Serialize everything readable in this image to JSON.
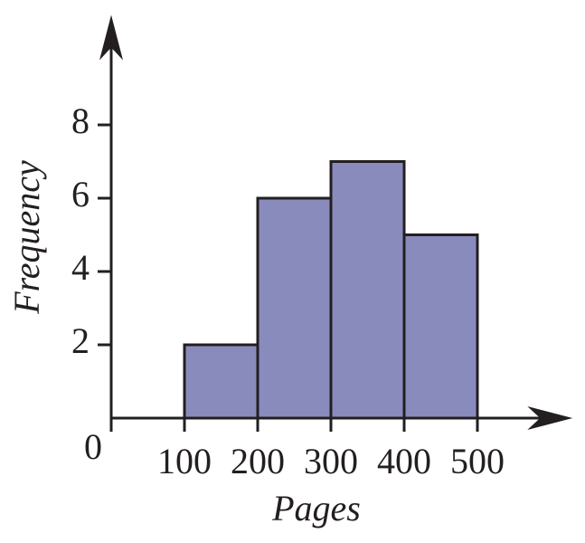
{
  "chart_data": {
    "type": "histogram",
    "x_label": "Pages",
    "y_label": "Frequency",
    "bins": [
      100,
      200,
      300,
      400,
      500
    ],
    "values": [
      2,
      6,
      7,
      5
    ],
    "color": "#8a8bbd",
    "xlim": [
      0,
      630
    ],
    "ylim": [
      0,
      11
    ],
    "xticks": [
      0,
      100,
      200,
      300,
      400,
      500
    ],
    "yticks": [
      2,
      4,
      6,
      8
    ]
  }
}
